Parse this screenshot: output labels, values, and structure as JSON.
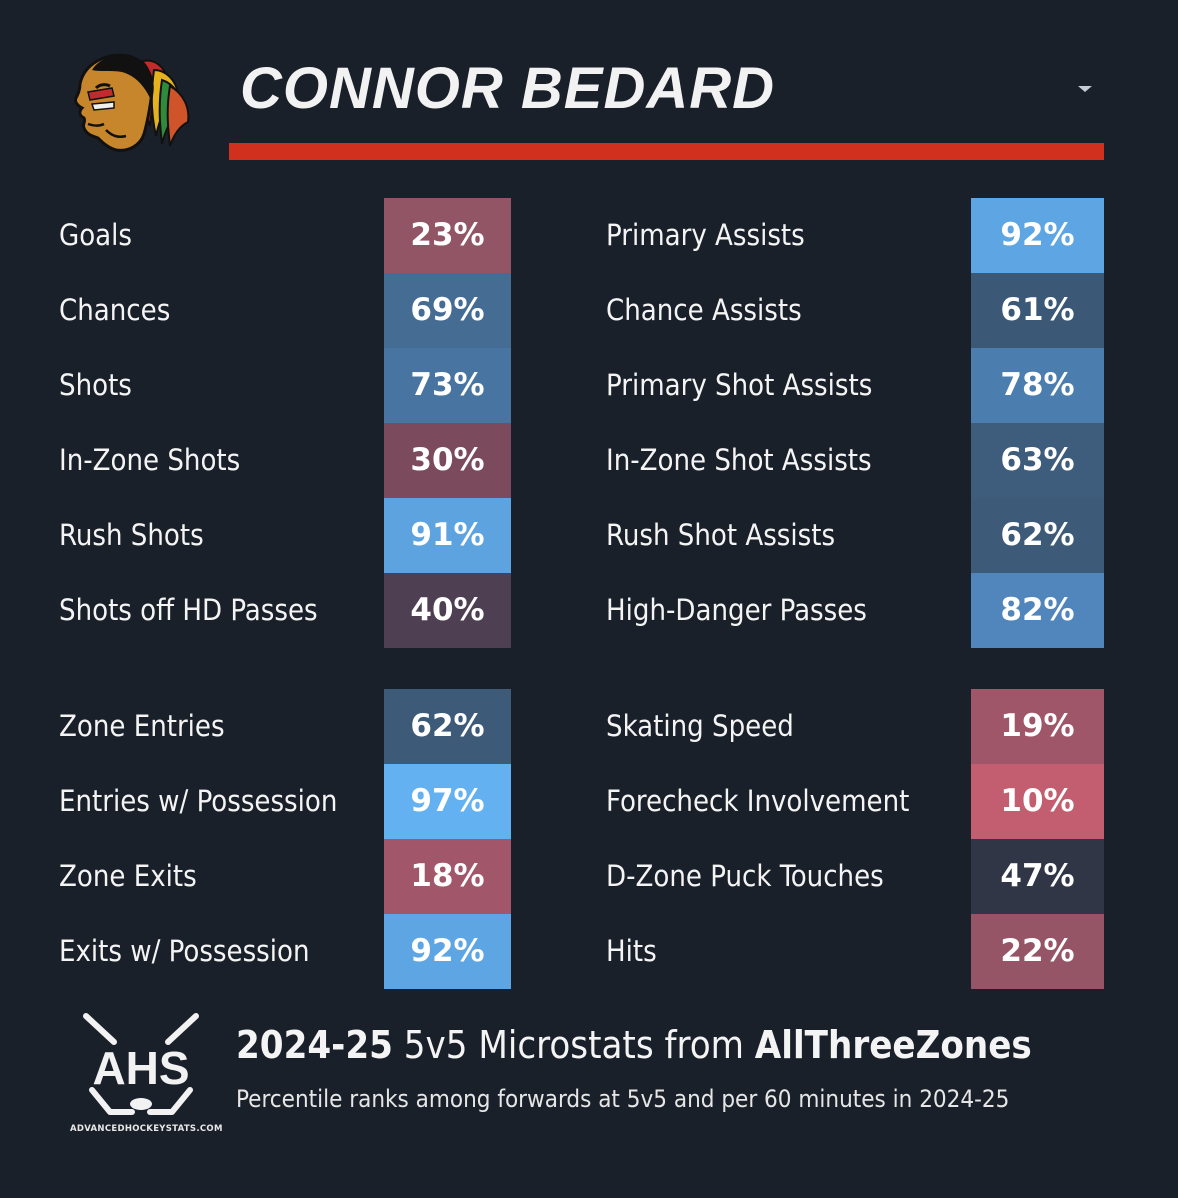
{
  "header": {
    "player_name": "CONNOR BEDARD",
    "team_logo_icon": "blackhawks-logo-icon",
    "accent_color": "#d2301f"
  },
  "stats": {
    "left_top": [
      {
        "label": "Goals",
        "value": "23%",
        "percentile": 23,
        "color": "#925566"
      },
      {
        "label": "Chances",
        "value": "69%",
        "percentile": 69,
        "color": "#456c93"
      },
      {
        "label": "Shots",
        "value": "73%",
        "percentile": 73,
        "color": "#4774a0"
      },
      {
        "label": "In-Zone Shots",
        "value": "30%",
        "percentile": 30,
        "color": "#7b4a5c"
      },
      {
        "label": "Rush Shots",
        "value": "91%",
        "percentile": 91,
        "color": "#5ca3e0"
      },
      {
        "label": "Shots off HD Passes",
        "value": "40%",
        "percentile": 40,
        "color": "#4e3f52"
      }
    ],
    "left_bottom": [
      {
        "label": "Zone Entries",
        "value": "62%",
        "percentile": 62,
        "color": "#3d5a79"
      },
      {
        "label": "Entries w/ Possession",
        "value": "97%",
        "percentile": 97,
        "color": "#64b1f2"
      },
      {
        "label": "Zone Exits",
        "value": "18%",
        "percentile": 18,
        "color": "#a1566a"
      },
      {
        "label": "Exits w/ Possession",
        "value": "92%",
        "percentile": 92,
        "color": "#5ea5e3"
      }
    ],
    "right_top": [
      {
        "label": "Primary Assists",
        "value": "92%",
        "percentile": 92,
        "color": "#5ea5e3"
      },
      {
        "label": "Chance Assists",
        "value": "61%",
        "percentile": 61,
        "color": "#3b5877"
      },
      {
        "label": "Primary Shot Assists",
        "value": "78%",
        "percentile": 78,
        "color": "#4b7eae"
      },
      {
        "label": "In-Zone Shot Assists",
        "value": "63%",
        "percentile": 63,
        "color": "#3e5c7c"
      },
      {
        "label": "Rush Shot Assists",
        "value": "62%",
        "percentile": 62,
        "color": "#3d5a79"
      },
      {
        "label": "High-Danger Passes",
        "value": "82%",
        "percentile": 82,
        "color": "#5086bb"
      }
    ],
    "right_bottom": [
      {
        "label": "Skating Speed",
        "value": "19%",
        "percentile": 19,
        "color": "#9f5669"
      },
      {
        "label": "Forecheck Involvement",
        "value": "10%",
        "percentile": 10,
        "color": "#c25e6f"
      },
      {
        "label": "D-Zone Puck Touches",
        "value": "47%",
        "percentile": 47,
        "color": "#313646"
      },
      {
        "label": "Hits",
        "value": "22%",
        "percentile": 22,
        "color": "#955567"
      }
    ]
  },
  "footer": {
    "title_season": "2024-25",
    "title_middle": " 5v5 Microstats from ",
    "title_source": "AllThreeZones",
    "subtitle": "Percentile ranks among forwards at 5v5 and per 60 minutes in 2024-25",
    "logo_text": "AHS",
    "logo_site": "ADVANCEDHOCKEYSTATS.COM",
    "logo_icon": "ahs-logo-icon"
  }
}
